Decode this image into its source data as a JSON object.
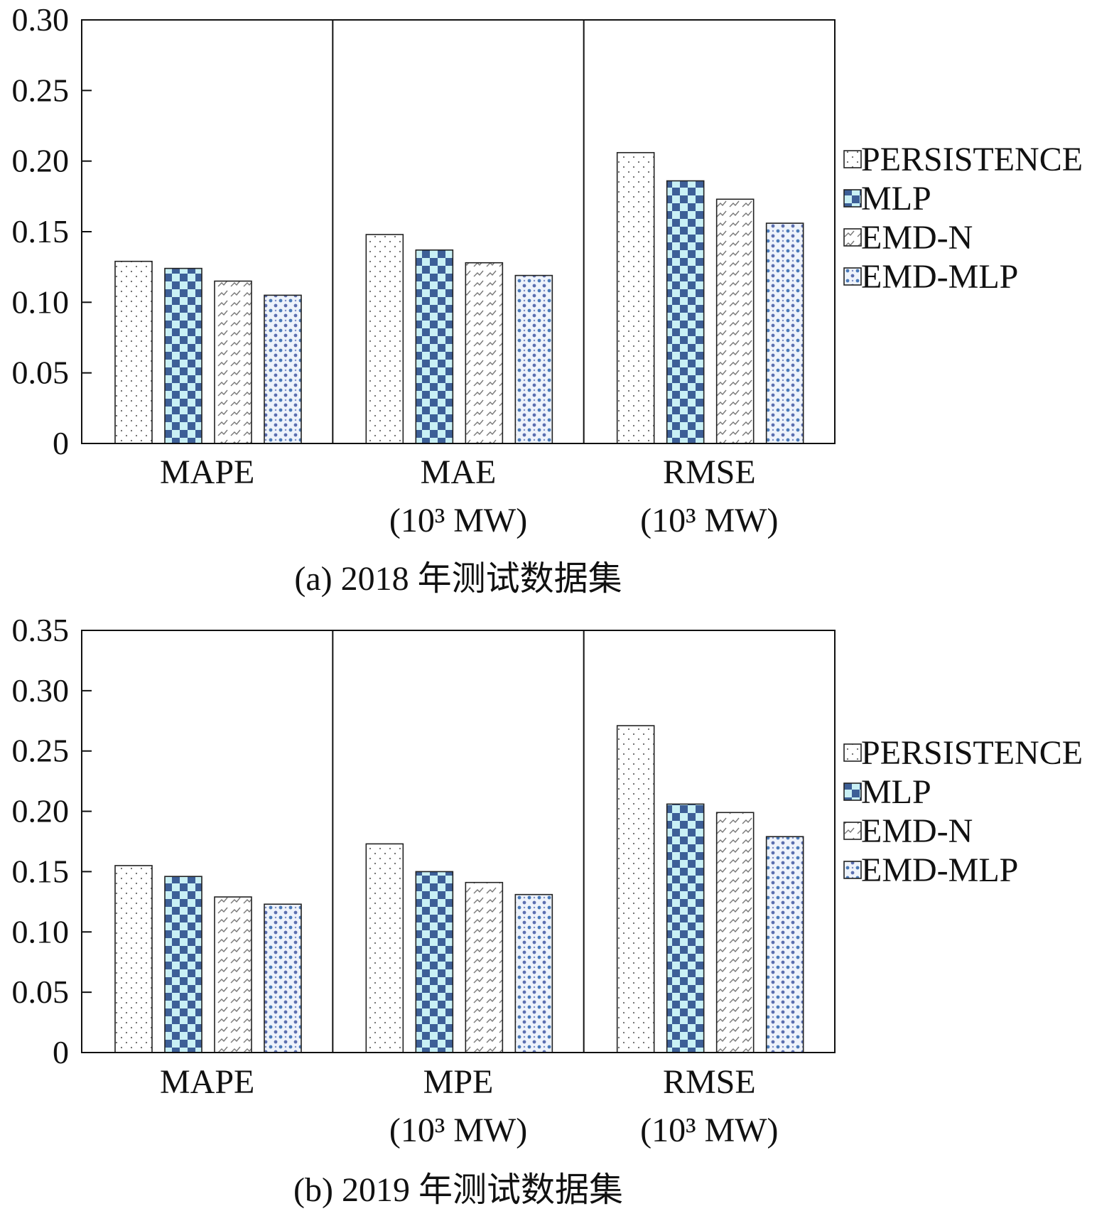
{
  "chart_data": [
    {
      "type": "bar",
      "caption": "(a) 2018 年测试数据集",
      "categories": [
        {
          "label": "MAPE",
          "unit": ""
        },
        {
          "label": "MAE",
          "unit": "(10³ MW)"
        },
        {
          "label": "RMSE",
          "unit": "(10³ MW)"
        }
      ],
      "series": [
        {
          "name": "PERSISTENCE",
          "values": [
            0.129,
            0.148,
            0.206
          ]
        },
        {
          "name": "MLP",
          "values": [
            0.124,
            0.137,
            0.186
          ]
        },
        {
          "name": "EMD-N",
          "values": [
            0.115,
            0.128,
            0.173
          ]
        },
        {
          "name": "EMD-MLP",
          "values": [
            0.105,
            0.119,
            0.156
          ]
        }
      ],
      "ylim": [
        0,
        0.3
      ],
      "yticks": [
        "0",
        "0.05",
        "0.10",
        "0.15",
        "0.20",
        "0.25",
        "0.30"
      ],
      "legend": "right",
      "grid": false
    },
    {
      "type": "bar",
      "caption": "(b) 2019 年测试数据集",
      "categories": [
        {
          "label": "MAPE",
          "unit": ""
        },
        {
          "label": "MPE",
          "unit": "(10³ MW)"
        },
        {
          "label": "RMSE",
          "unit": "(10³ MW)"
        }
      ],
      "series": [
        {
          "name": "PERSISTENCE",
          "values": [
            0.155,
            0.173,
            0.271
          ]
        },
        {
          "name": "MLP",
          "values": [
            0.146,
            0.15,
            0.206
          ]
        },
        {
          "name": "EMD-N",
          "values": [
            0.129,
            0.141,
            0.199
          ]
        },
        {
          "name": "EMD-MLP",
          "values": [
            0.123,
            0.131,
            0.179
          ]
        }
      ],
      "ylim": [
        0,
        0.35
      ],
      "yticks": [
        "0",
        "0.05",
        "0.10",
        "0.15",
        "0.20",
        "0.25",
        "0.30",
        "0.35"
      ],
      "legend": "right",
      "grid": false
    }
  ],
  "series_colors": {
    "PERSISTENCE": "#ffffff",
    "MLP": "#3f6fa5",
    "EMD-N": "#ffffff",
    "EMD-MLP": "#4a79b8"
  }
}
